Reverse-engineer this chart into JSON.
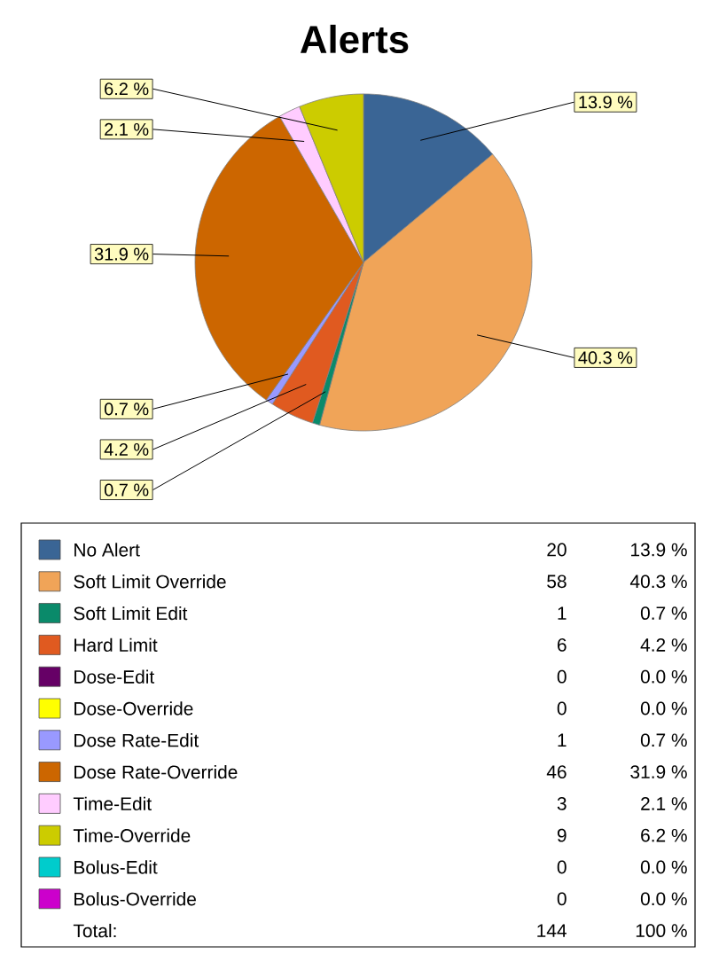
{
  "chart_data": {
    "type": "pie",
    "title": "Alerts",
    "categories": [
      "No Alert",
      "Soft Limit Override",
      "Soft Limit Edit",
      "Hard Limit",
      "Dose-Edit",
      "Dose-Override",
      "Dose Rate-Edit",
      "Dose Rate-Override",
      "Time-Edit",
      "Time-Override",
      "Bolus-Edit",
      "Bolus-Override"
    ],
    "values": [
      13.9,
      40.3,
      0.7,
      4.2,
      0.0,
      0.0,
      0.7,
      31.9,
      2.1,
      6.2,
      0.0,
      0.0
    ],
    "value_labels": [
      "13.9 %",
      "40.3 %",
      "0.7 %",
      "4.2 %",
      "0.0 %",
      "0.0 %",
      "0.7 %",
      "31.9 %",
      "2.1 %",
      "6.2 %",
      "0.0 %",
      "0.0 %"
    ],
    "colors": [
      "#3a6595",
      "#f0a458",
      "#0a8a6a",
      "#e05a20",
      "#660066",
      "#ffff00",
      "#9999ff",
      "#cc6600",
      "#ffccff",
      "#cccc00",
      "#00cccc",
      "#cc00cc"
    ],
    "legend": "bottom",
    "annotations": [
      "20",
      "58",
      "1",
      "6",
      "0",
      "0",
      "1",
      "46",
      "3",
      "9",
      "0",
      "0",
      "Total:",
      "144",
      "100 %"
    ]
  }
}
